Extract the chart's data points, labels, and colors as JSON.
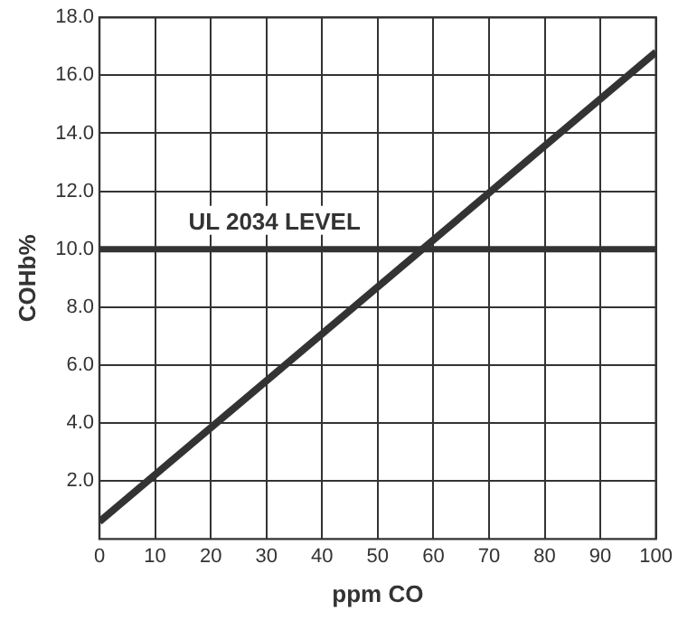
{
  "chart_data": {
    "type": "line",
    "xlabel": "ppm CO",
    "ylabel": "COHb%",
    "x": [
      0,
      100
    ],
    "series": [
      {
        "color": "#333333",
        "values": [
          0.6,
          16.8
        ]
      }
    ],
    "xlim": [
      0,
      100
    ],
    "xticks": [
      0,
      10,
      20,
      30,
      40,
      50,
      60,
      70,
      80,
      90,
      100
    ],
    "ylim": [
      0,
      18
    ],
    "yticks": [
      {
        "value": 2,
        "label": "2.0"
      },
      {
        "value": 4,
        "label": "4.0"
      },
      {
        "value": 6,
        "label": "6.0"
      },
      {
        "value": 8,
        "label": "8.0"
      },
      {
        "value": 10,
        "label": "10.0"
      },
      {
        "value": 12,
        "label": "12.0"
      },
      {
        "value": 14,
        "label": "14.0"
      },
      {
        "value": 16,
        "label": "16.0"
      },
      {
        "value": 18,
        "label": "18.0"
      }
    ],
    "ref_lines": [
      {
        "axis": "y",
        "value": 10,
        "label": "UL 2034 LEVEL",
        "color": "#333333"
      }
    ],
    "grid": true,
    "legend": false,
    "marker": "none",
    "line_style": "solid"
  }
}
